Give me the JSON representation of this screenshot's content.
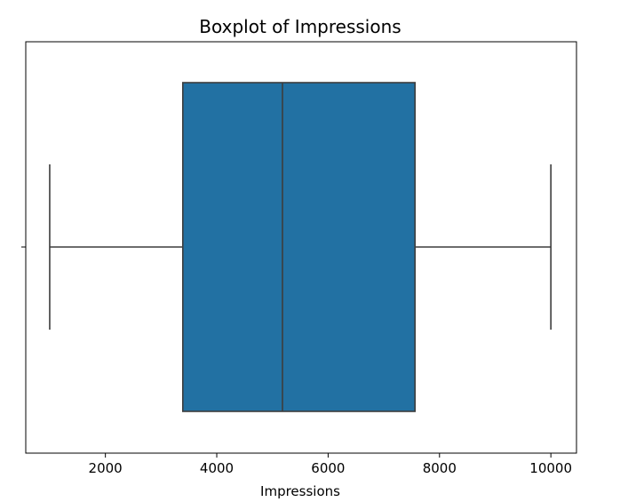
{
  "chart_data": {
    "type": "box",
    "title": "Boxplot of Impressions",
    "xlabel": "Impressions",
    "ylabel": "",
    "xlim": [
      570,
      10460
    ],
    "x_ticks": [
      2000,
      4000,
      6000,
      8000,
      10000
    ],
    "y_ticks": [
      ""
    ],
    "grid": false,
    "series": [
      {
        "whisker_low": 1000,
        "q1": 3390,
        "median": 5180,
        "q3": 7560,
        "whisker_high": 10000
      }
    ],
    "colors": {
      "box_fill": "#2271a3",
      "line": "#3d3d3d",
      "frame": "#000000"
    }
  }
}
